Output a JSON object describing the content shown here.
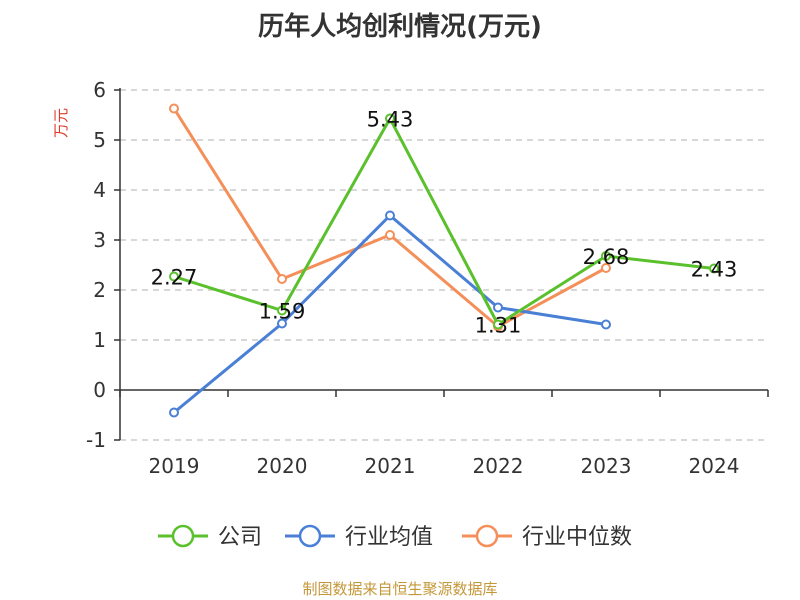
{
  "chart_data": {
    "type": "line",
    "title": "历年人均创利情况(万元)",
    "ylabel": "万元",
    "categories": [
      "2019",
      "2020",
      "2021",
      "2022",
      "2023",
      "2024"
    ],
    "ylim": [
      -1,
      6
    ],
    "yticks": [
      -1,
      0,
      1,
      2,
      3,
      4,
      5,
      6
    ],
    "grid": true,
    "legend_position": "bottom",
    "series": [
      {
        "name": "公司",
        "color": "#5ac02c",
        "values": [
          2.27,
          1.59,
          5.43,
          1.31,
          2.68,
          2.43
        ],
        "labels": [
          "2.27",
          "1.59",
          "5.43",
          "1.31",
          "2.68",
          "2.43"
        ]
      },
      {
        "name": "行业均值",
        "color": "#4a7fd6",
        "values": [
          -0.45,
          1.33,
          3.49,
          1.65,
          1.31,
          null
        ]
      },
      {
        "name": "行业中位数",
        "color": "#f58f5a",
        "values": [
          5.63,
          2.22,
          3.1,
          1.27,
          2.44,
          null
        ]
      }
    ]
  },
  "footer": "制图数据来自恒生聚源数据库",
  "colors": {
    "axis": "#333333",
    "grid": "#cccccc",
    "unit": "#e0392b",
    "footer": "#c4983a"
  }
}
